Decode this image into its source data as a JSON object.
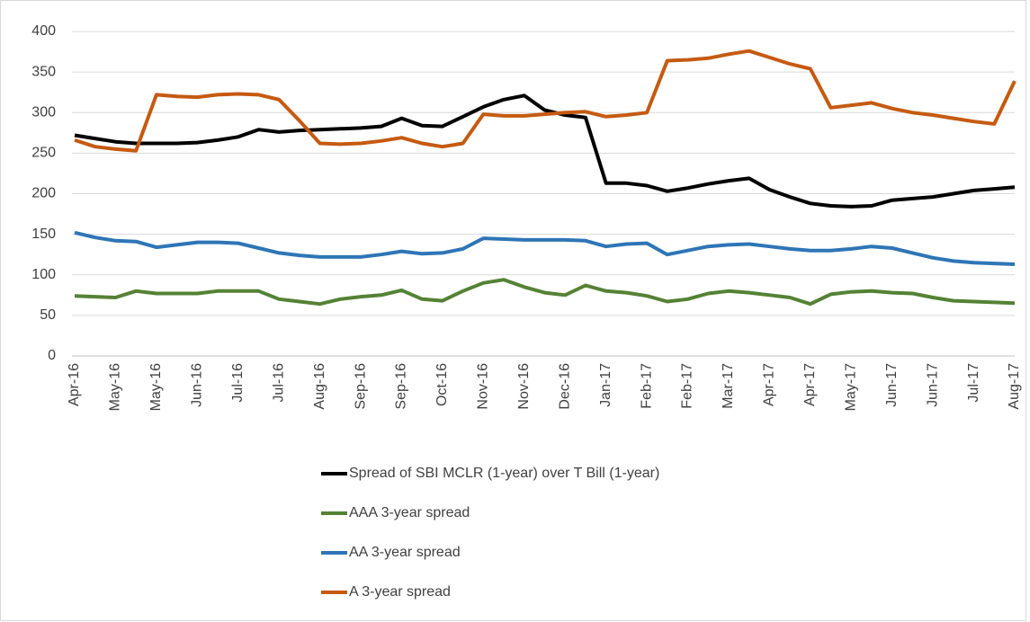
{
  "chart_data": {
    "type": "line",
    "categories": [
      "Apr-16",
      null,
      "May-16",
      null,
      "May-16",
      null,
      "Jun-16",
      null,
      "Jul-16",
      null,
      "Jul-16",
      null,
      "Aug-16",
      null,
      "Sep-16",
      null,
      "Sep-16",
      null,
      "Oct-16",
      null,
      "Nov-16",
      null,
      "Nov-16",
      null,
      "Dec-16",
      null,
      "Jan-17",
      null,
      "Feb-17",
      null,
      "Feb-17",
      null,
      "Mar-17",
      null,
      "Apr-17",
      null,
      "Apr-17",
      null,
      "May-17",
      null,
      "Jun-17",
      null,
      "Jun-17",
      null,
      "Jul-17",
      null,
      "Aug-17"
    ],
    "series": [
      {
        "name": "Spread of SBI MCLR (1-year) over T Bill (1-year)",
        "color": "#000000",
        "values": [
          272,
          268,
          264,
          262,
          262,
          262,
          263,
          266,
          270,
          279,
          276,
          278,
          279,
          280,
          281,
          283,
          293,
          284,
          283,
          295,
          307,
          316,
          321,
          303,
          297,
          294,
          213,
          213,
          210,
          203,
          207,
          212,
          216,
          219,
          205,
          196,
          188,
          185,
          184,
          185,
          192,
          194,
          196,
          200,
          204,
          206,
          208
        ]
      },
      {
        "name": "AAA 3-year spread",
        "color": "#548235",
        "values": [
          74,
          73,
          72,
          80,
          77,
          77,
          77,
          80,
          80,
          80,
          70,
          67,
          64,
          70,
          73,
          75,
          81,
          70,
          68,
          80,
          90,
          94,
          85,
          78,
          75,
          87,
          80,
          78,
          74,
          67,
          70,
          77,
          80,
          78,
          75,
          72,
          64,
          76,
          79,
          80,
          78,
          77,
          72,
          68,
          67,
          66,
          65
        ]
      },
      {
        "name": "AA 3-year spread",
        "color": "#2e75b6",
        "values": [
          152,
          146,
          142,
          141,
          134,
          137,
          140,
          140,
          139,
          133,
          127,
          124,
          122,
          122,
          122,
          125,
          129,
          126,
          127,
          132,
          145,
          144,
          143,
          143,
          143,
          142,
          135,
          138,
          139,
          125,
          130,
          135,
          137,
          138,
          135,
          132,
          130,
          130,
          132,
          135,
          133,
          127,
          121,
          117,
          115,
          114,
          113
        ]
      },
      {
        "name": "A 3-year spread",
        "color": "#c55a11",
        "values": [
          266,
          258,
          255,
          253,
          322,
          320,
          319,
          322,
          323,
          322,
          316,
          290,
          262,
          261,
          262,
          265,
          269,
          262,
          258,
          262,
          298,
          296,
          296,
          298,
          300,
          301,
          295,
          297,
          300,
          364,
          365,
          367,
          372,
          376,
          368,
          360,
          354,
          306,
          309,
          312,
          305,
          300,
          297,
          293,
          289,
          286,
          339
        ]
      }
    ],
    "ylim": [
      0,
      400
    ],
    "yticks": [
      0,
      50,
      100,
      150,
      200,
      250,
      300,
      350,
      400
    ],
    "grid": true,
    "legend": "bottom"
  }
}
